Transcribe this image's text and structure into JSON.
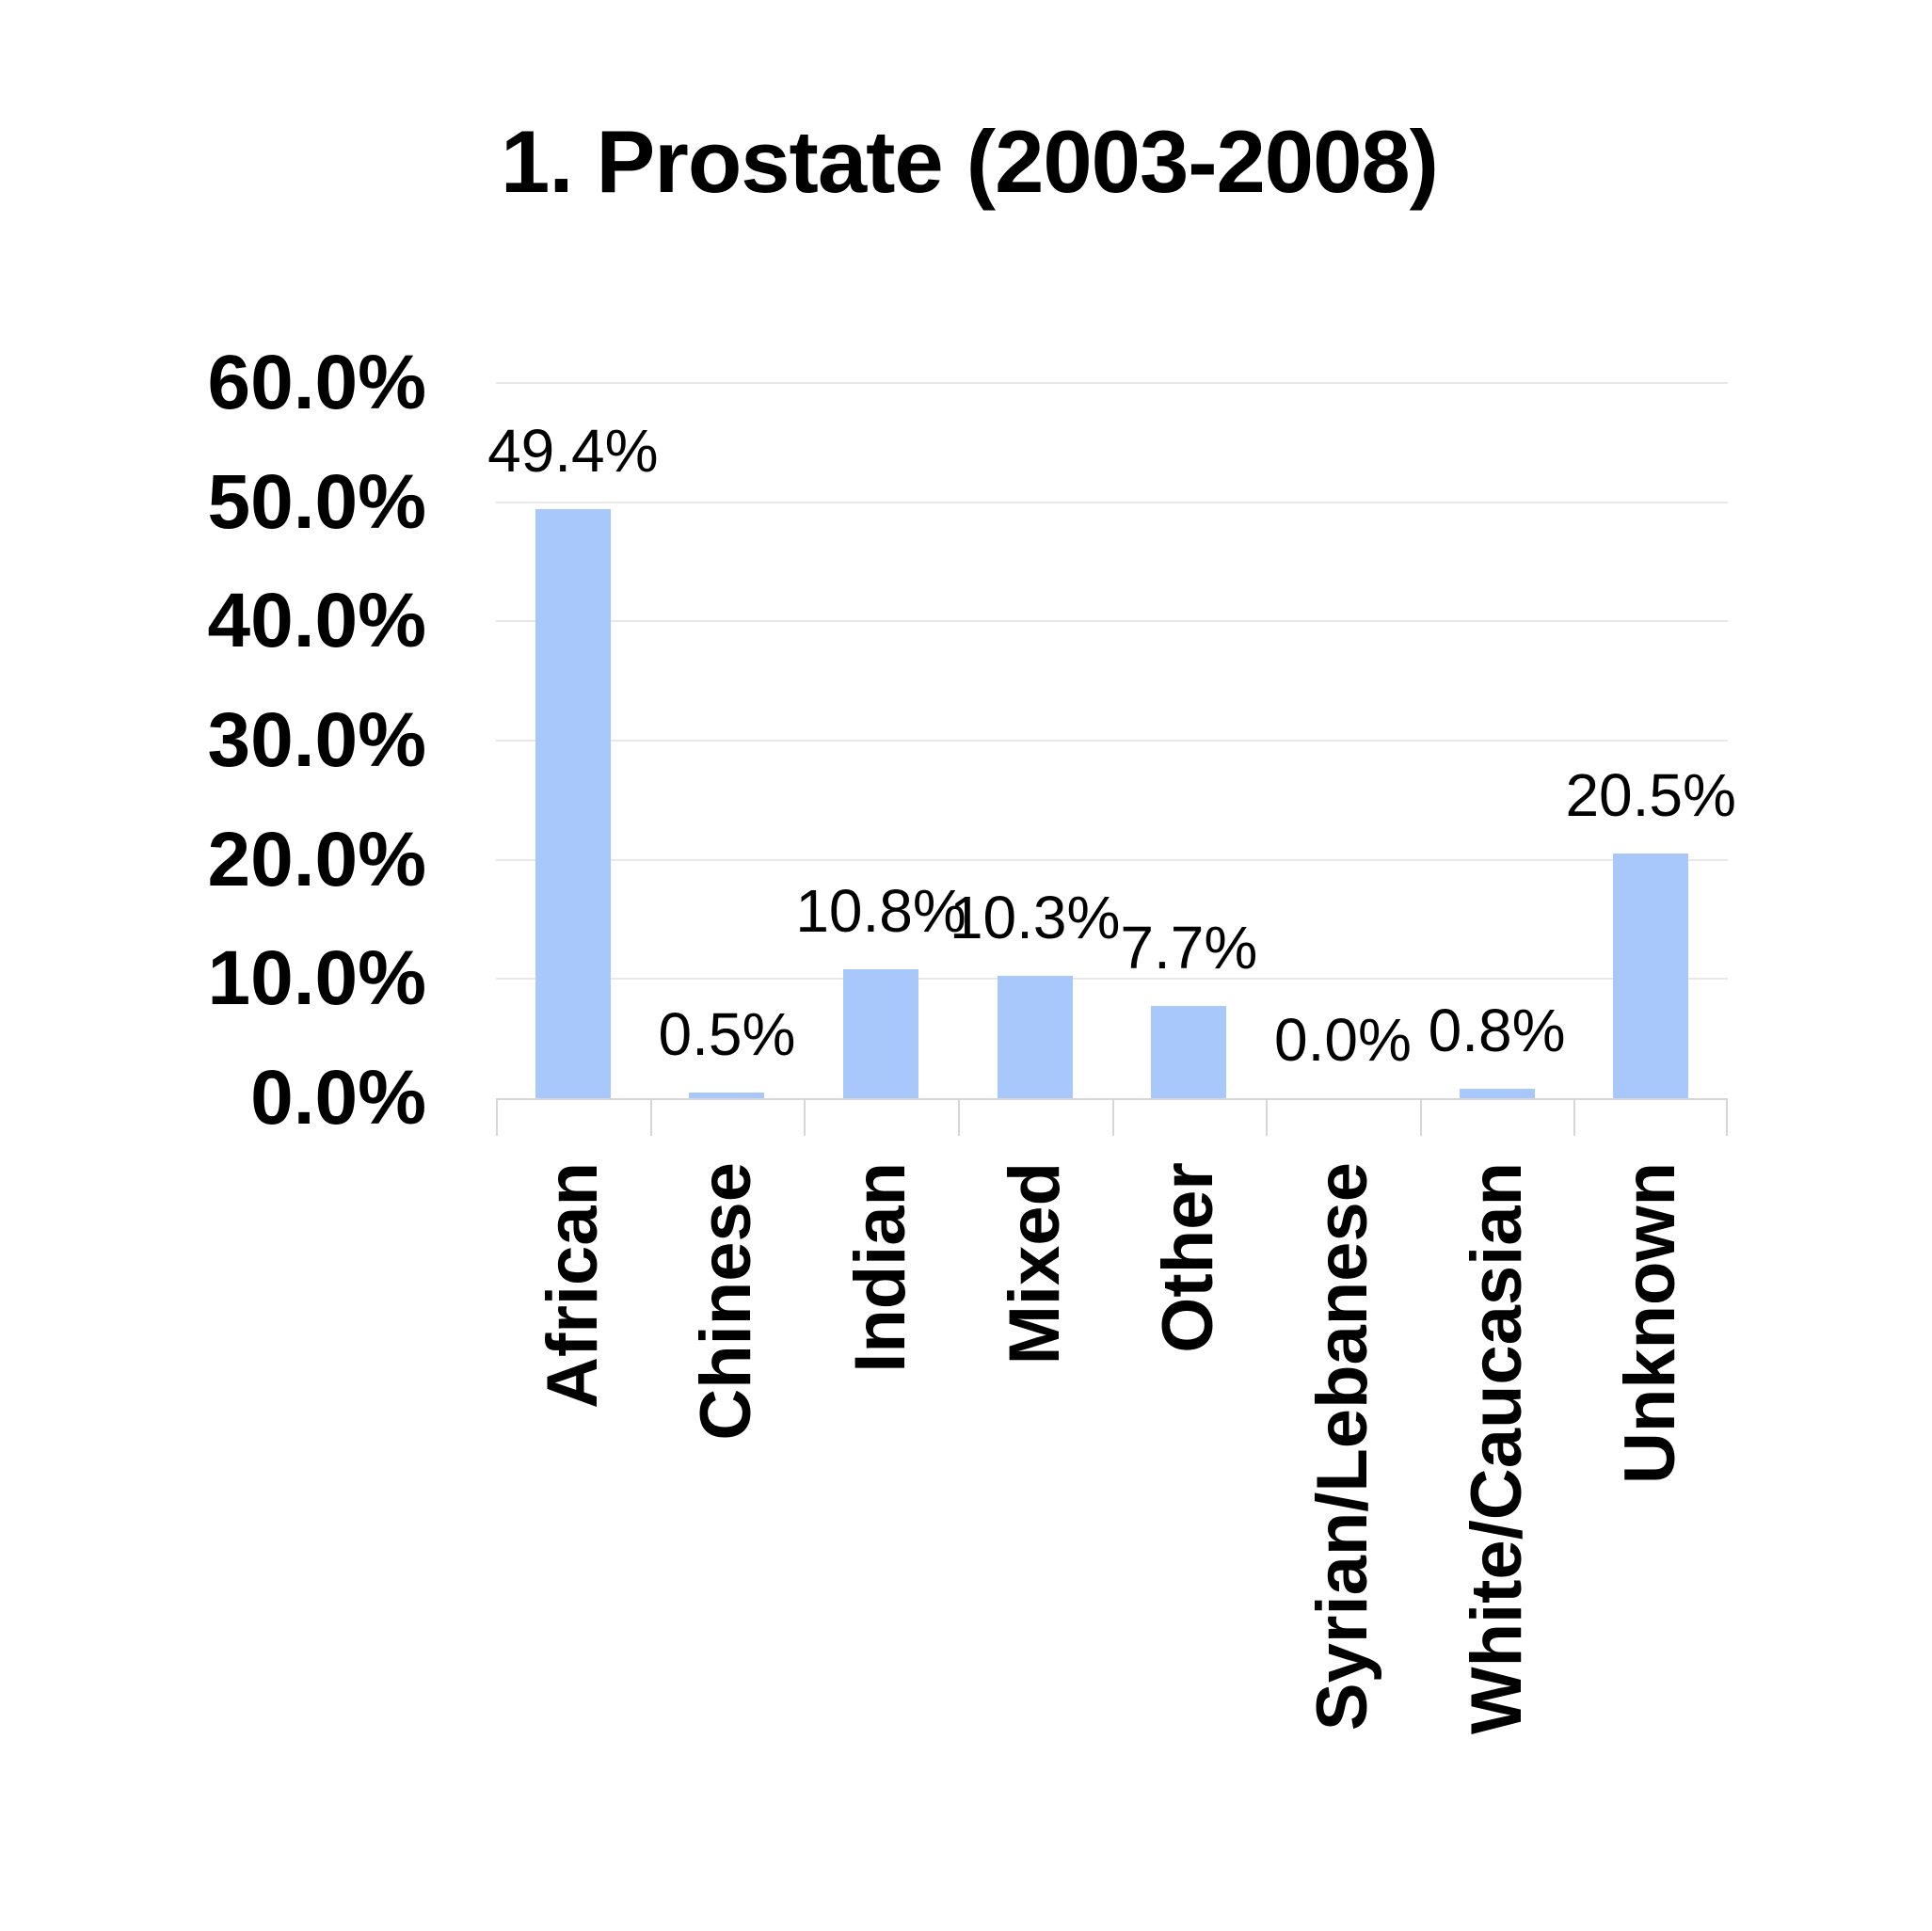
{
  "chart_data": {
    "type": "bar",
    "title": "1. Prostate (2003-2008)",
    "categories": [
      "African",
      "Chinese",
      "Indian",
      "Mixed",
      "Other",
      "Syrian/Lebanese",
      "White/Caucasian",
      "Unknown"
    ],
    "values": [
      49.4,
      0.5,
      10.8,
      10.3,
      7.7,
      0.0,
      0.8,
      20.5
    ],
    "data_labels": [
      "49.4%",
      "0.5%",
      "10.8%",
      "10.3%",
      "7.7%",
      "0.0%",
      "0.8%",
      "20.5%"
    ],
    "y_ticks": [
      "60.0%",
      "50.0%",
      "40.0%",
      "30.0%",
      "20.0%",
      "10.0%",
      "0.0%"
    ],
    "ylim": [
      0,
      60
    ],
    "xlabel": "",
    "ylabel": "",
    "grid": true,
    "legend": "none",
    "colors": {
      "bar_fill": "#A8C7FA",
      "gridline": "#E8E8E8",
      "axis_line": "#D6D6D6",
      "text": "#000000",
      "background": "#FFFFFF"
    }
  }
}
